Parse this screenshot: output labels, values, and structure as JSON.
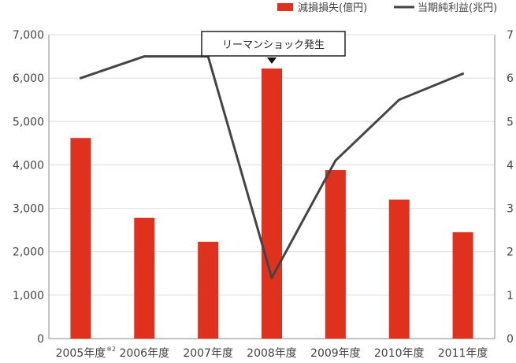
{
  "chart_data": {
    "type": "bar+line",
    "categories": [
      "2005年度",
      "2006年度",
      "2007年度",
      "2008年度",
      "2009年度",
      "2010年度",
      "2011年度"
    ],
    "first_category_note": "※2",
    "series": [
      {
        "name": "減損損失(億円)",
        "type": "bar",
        "axis": "left",
        "color": "#e0301e",
        "values": [
          4620,
          2780,
          2230,
          6220,
          3880,
          3200,
          2450
        ]
      },
      {
        "name": "当期純利益(兆円)",
        "type": "line",
        "axis": "right",
        "color": "#444444",
        "values": [
          6.0,
          6.5,
          6.5,
          1.4,
          4.1,
          5.5,
          6.1
        ]
      }
    ],
    "y_left": {
      "min": 0,
      "max": 7000,
      "ticks": [
        "0",
        "1,000",
        "2,000",
        "3,000",
        "4,000",
        "5,000",
        "6,000",
        "7,000"
      ]
    },
    "y_right": {
      "min": 0,
      "max": 7,
      "ticks": [
        "0",
        "1",
        "2",
        "3",
        "4",
        "5",
        "6",
        "7"
      ]
    },
    "grid": true,
    "legend_position": "top-right",
    "annotation": {
      "text": "リーマンショック発生",
      "category_index": 3
    }
  }
}
